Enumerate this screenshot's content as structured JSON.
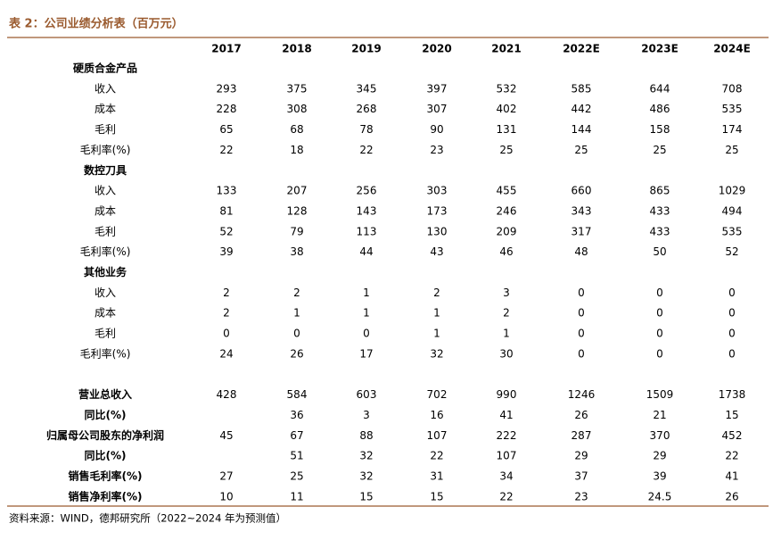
{
  "title": "表 2：公司业绩分析表（百万元）",
  "columns": [
    "2017",
    "2018",
    "2019",
    "2020",
    "2021",
    "2022E",
    "2023E",
    "2024E"
  ],
  "segments": [
    {
      "name": "硬质合金产品",
      "rows": [
        {
          "label": "收入",
          "values": [
            293,
            375,
            345,
            397,
            532,
            585,
            644,
            708
          ]
        },
        {
          "label": "成本",
          "values": [
            228,
            308,
            268,
            307,
            402,
            442,
            486,
            535
          ]
        },
        {
          "label": "毛利",
          "values": [
            65,
            68,
            78,
            90,
            131,
            144,
            158,
            174
          ]
        },
        {
          "label": "毛利率(%)",
          "values": [
            22,
            18,
            22,
            23,
            25,
            25,
            25,
            25
          ]
        }
      ]
    },
    {
      "name": "数控刀具",
      "rows": [
        {
          "label": "收入",
          "values": [
            133,
            207,
            256,
            303,
            455,
            660,
            865,
            1029
          ]
        },
        {
          "label": "成本",
          "values": [
            81,
            128,
            143,
            173,
            246,
            343,
            433,
            494
          ]
        },
        {
          "label": "毛利",
          "values": [
            52,
            79,
            113,
            130,
            209,
            317,
            433,
            535
          ]
        },
        {
          "label": "毛利率(%)",
          "values": [
            39,
            38,
            44,
            43,
            46,
            48,
            50,
            52
          ]
        }
      ]
    },
    {
      "name": "其他业务",
      "rows": [
        {
          "label": "收入",
          "values": [
            2,
            2,
            1,
            2,
            3,
            0,
            0,
            0
          ]
        },
        {
          "label": "成本",
          "values": [
            2,
            1,
            1,
            1,
            2,
            0,
            0,
            0
          ]
        },
        {
          "label": "毛利",
          "values": [
            0,
            0,
            0,
            1,
            1,
            0,
            0,
            0
          ]
        },
        {
          "label": "毛利率(%)",
          "values": [
            24,
            26,
            17,
            32,
            30,
            0,
            0,
            0
          ]
        }
      ]
    }
  ],
  "summary": [
    {
      "label": "营业总收入",
      "values": [
        428,
        584,
        603,
        702,
        990,
        1246,
        1509,
        1738
      ]
    },
    {
      "label": "同比(%)",
      "values": [
        null,
        36,
        3,
        16,
        41,
        26,
        21,
        15
      ]
    },
    {
      "label": "归属母公司股东的净利润",
      "values": [
        45,
        67,
        88,
        107,
        222,
        287,
        370,
        452
      ]
    },
    {
      "label": "同比(%)",
      "values": [
        null,
        51,
        32,
        22,
        107,
        29,
        29,
        22
      ]
    },
    {
      "label": "销售毛利率(%)",
      "values": [
        27,
        25,
        32,
        31,
        34,
        37,
        39,
        41
      ]
    },
    {
      "label": "销售净利率(%)",
      "values": [
        10,
        11,
        15,
        15,
        22,
        23,
        24.5,
        26
      ]
    }
  ],
  "source": "资料来源：WIND，德邦研究所（2022~2024 年为预测值）"
}
